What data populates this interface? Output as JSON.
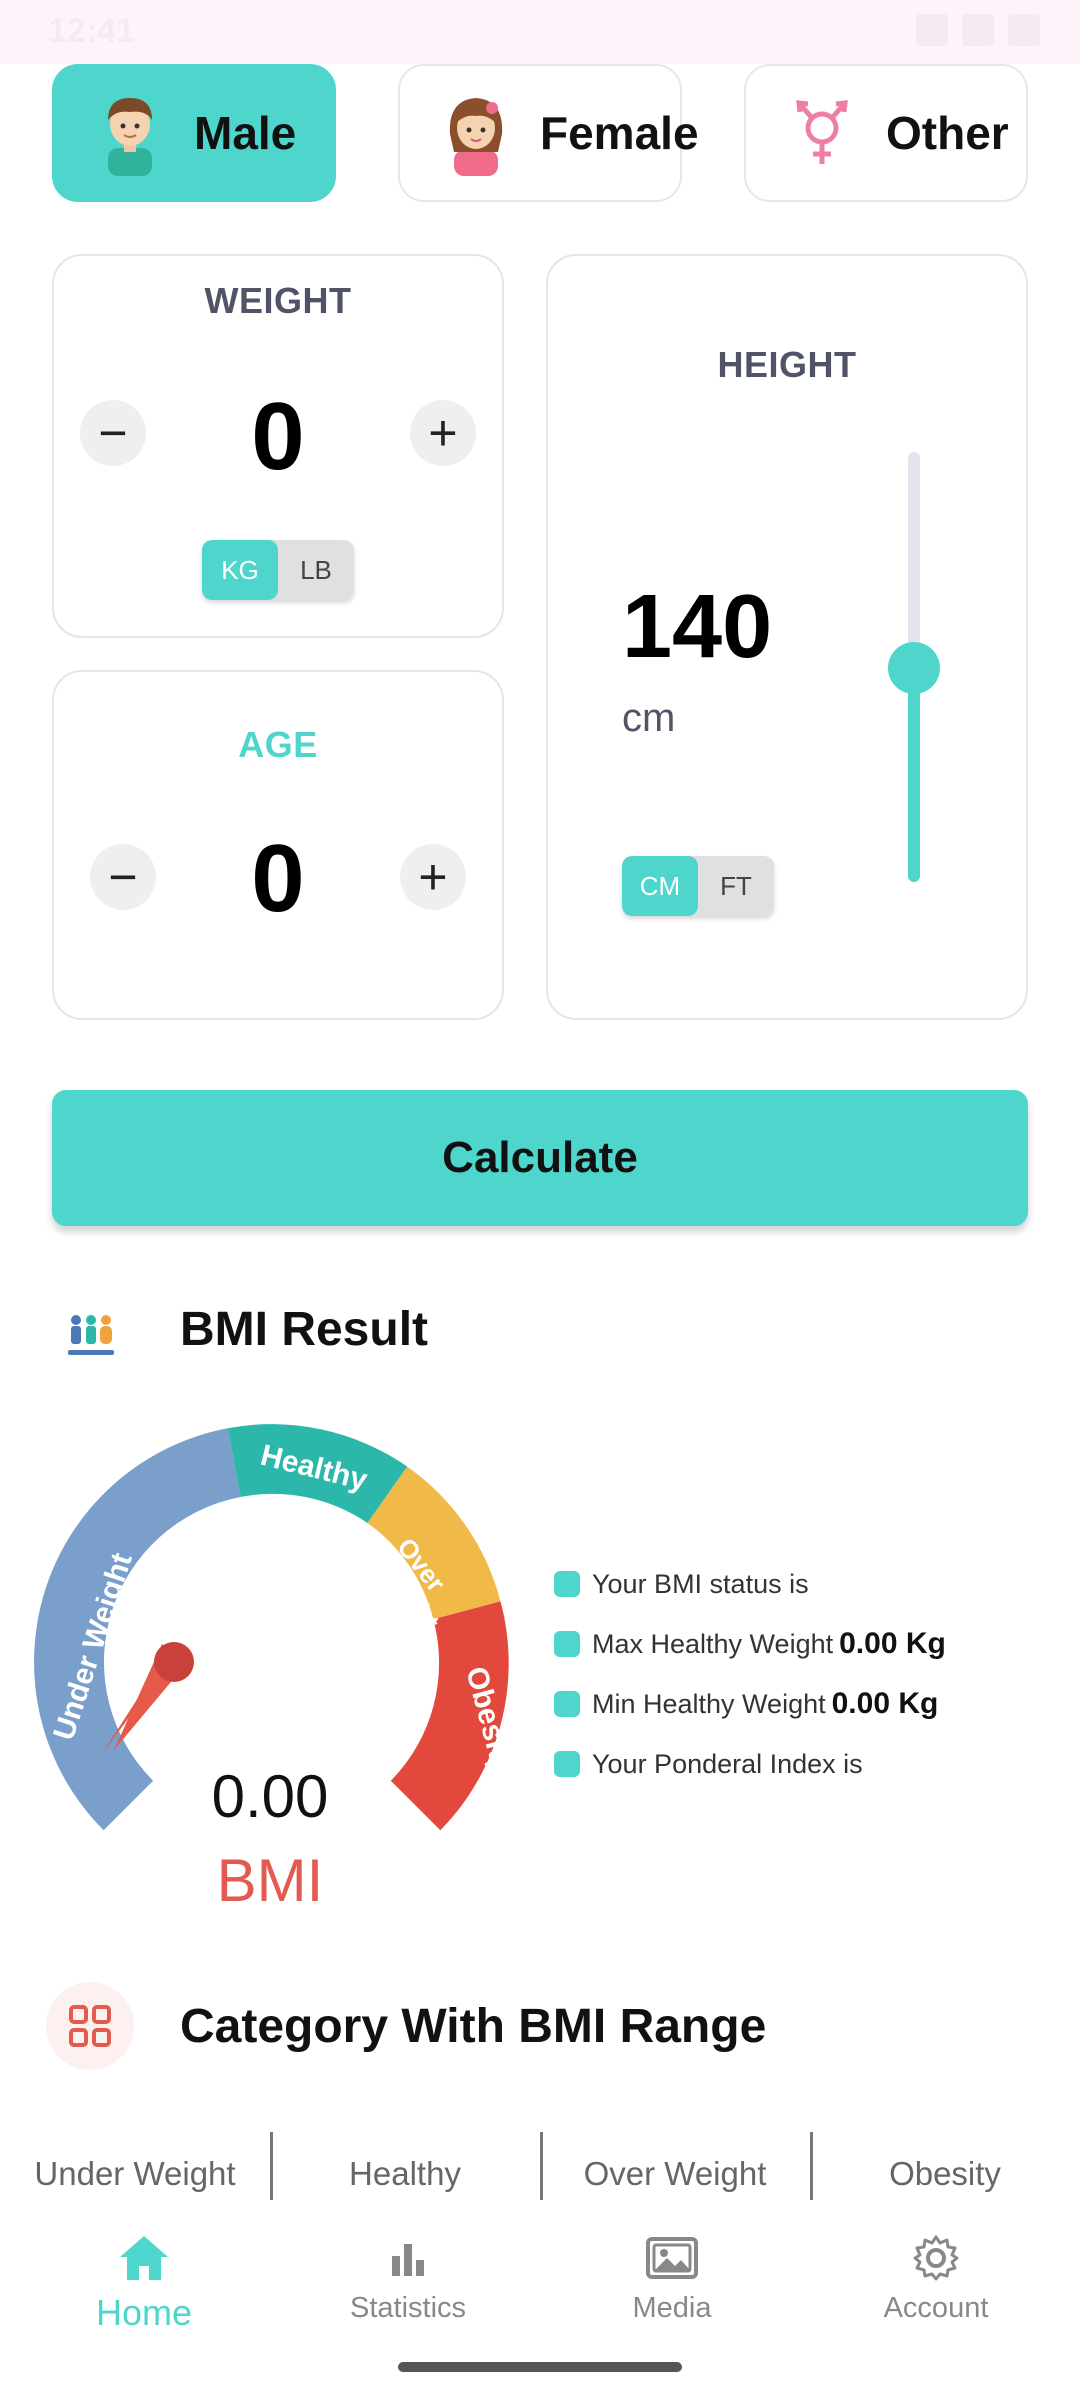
{
  "status": {
    "time": "12:41"
  },
  "gender": {
    "options": [
      {
        "label": "Male",
        "icon": "male-avatar-icon"
      },
      {
        "label": "Female",
        "icon": "female-avatar-icon"
      },
      {
        "label": "Other",
        "icon": "transgender-symbol-icon"
      }
    ],
    "selected": "Male"
  },
  "weight": {
    "title": "WEIGHT",
    "value": "0",
    "minus": "−",
    "plus": "+",
    "units": [
      "KG",
      "LB"
    ],
    "selected_unit": "KG"
  },
  "age": {
    "title": "AGE",
    "value": "0",
    "minus": "−",
    "plus": "+"
  },
  "height": {
    "title": "HEIGHT",
    "value": "140",
    "unit_label": "cm",
    "units": [
      "CM",
      "FT"
    ],
    "selected_unit": "CM",
    "slider_level": 0.5
  },
  "calculate_label": "Calculate",
  "result": {
    "title": "BMI Result",
    "gauge_segments": [
      "Under Weight",
      "Healthy",
      "Over Weight",
      "Obesity"
    ],
    "value": "0.00",
    "value_label": "BMI",
    "info": [
      {
        "label": "Your BMI status is",
        "value": ""
      },
      {
        "label": "Max Healthy Weight",
        "value": "0.00 Kg"
      },
      {
        "label": "Min Healthy Weight",
        "value": "0.00 Kg"
      },
      {
        "label": "Your Ponderal Index is",
        "value": ""
      }
    ]
  },
  "category": {
    "title": "Category With BMI Range",
    "tabs": [
      "Under Weight",
      "Healthy",
      "Over Weight",
      "Obesity"
    ]
  },
  "nav": {
    "items": [
      {
        "label": "Home",
        "icon": "home-icon"
      },
      {
        "label": "Statistics",
        "icon": "bar-chart-icon"
      },
      {
        "label": "Media",
        "icon": "image-gallery-icon"
      },
      {
        "label": "Account",
        "icon": "gear-icon"
      }
    ],
    "active": "Home"
  },
  "colors": {
    "accent": "#4fd6cc",
    "underweight": "#7a9fcb",
    "healthy": "#2bb8ab",
    "overweight": "#f0b948",
    "obesity": "#e2483b",
    "bmi_text": "#e35a50"
  }
}
